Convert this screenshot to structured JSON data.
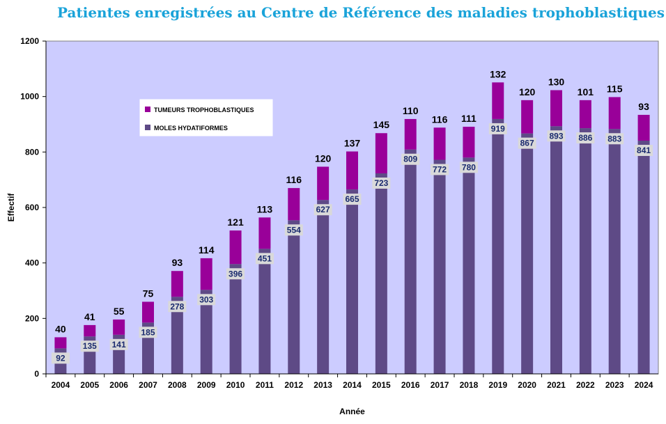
{
  "colors": {
    "plot_bg": "#ccccff",
    "moles": "#5e4a86",
    "tumeurs": "#990099",
    "label_box": "#d9d9d9"
  },
  "chart_data": {
    "type": "bar",
    "stacked": true,
    "title": "Patientes enregistrées au Centre de Référence des maladies trophoblastiques",
    "xlabel": "Année",
    "ylabel": "Effectif",
    "ylim": [
      0,
      1200
    ],
    "yticks": [
      0,
      200,
      400,
      600,
      800,
      1000,
      1200
    ],
    "categories": [
      "2004",
      "2005",
      "2006",
      "2007",
      "2008",
      "2009",
      "2010",
      "2011",
      "2012",
      "2013",
      "2014",
      "2015",
      "2016",
      "2017",
      "2018",
      "2019",
      "2020",
      "2021",
      "2022",
      "2023",
      "2024"
    ],
    "series": [
      {
        "name": "MOLES HYDATIFORMES",
        "values": [
          92,
          135,
          141,
          185,
          278,
          303,
          396,
          451,
          554,
          627,
          665,
          723,
          809,
          772,
          780,
          919,
          867,
          893,
          886,
          883,
          841
        ]
      },
      {
        "name": "TUMEURS TROPHOBLASTIQUES",
        "values": [
          40,
          41,
          55,
          75,
          93,
          114,
          121,
          113,
          116,
          120,
          137,
          145,
          110,
          116,
          111,
          132,
          120,
          130,
          101,
          115,
          93
        ]
      }
    ],
    "legend": {
      "position": "upper-left",
      "entries": [
        "TUMEURS TROPHOBLASTIQUES",
        "MOLES HYDATIFORMES"
      ]
    }
  }
}
